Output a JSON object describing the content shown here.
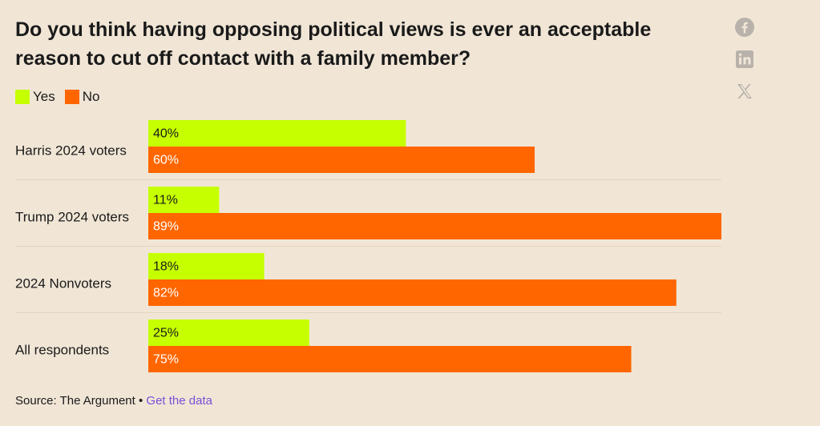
{
  "title": "Do you think having opposing political views is ever an acceptable reason to cut off contact with a family member?",
  "colors": {
    "yes": "#c6ff00",
    "no": "#ff6600",
    "background": "#f1e6d6",
    "divider": "#e0d3c2",
    "icon": "#b8b2ab",
    "link": "#7a4fd6"
  },
  "social": {
    "icons": [
      "facebook-icon",
      "linkedin-icon",
      "x-icon"
    ]
  },
  "source": {
    "prefix": "Source: The Argument",
    "separator": " • ",
    "link_label": "Get the data"
  },
  "chart_data": {
    "type": "bar",
    "orientation": "horizontal",
    "categories": [
      "Harris 2024 voters",
      "Trump 2024 voters",
      "2024 Nonvoters",
      "All respondents"
    ],
    "series": [
      {
        "name": "Yes",
        "values": [
          40,
          11,
          18,
          25
        ]
      },
      {
        "name": "No",
        "values": [
          60,
          89,
          82,
          75
        ]
      }
    ],
    "value_labels": {
      "Yes": [
        "40%",
        "11%",
        "18%",
        "25%"
      ],
      "No": [
        "60%",
        "89%",
        "82%",
        "75%"
      ]
    },
    "xlim": [
      0,
      89
    ],
    "grid": false,
    "legend_position": "top-left"
  }
}
